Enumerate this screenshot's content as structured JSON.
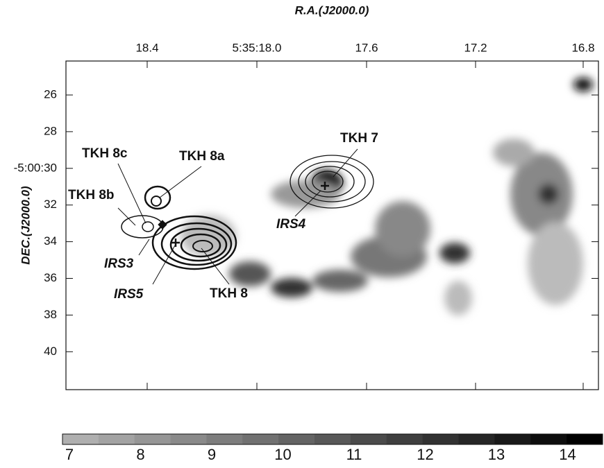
{
  "figure": {
    "x_axis": {
      "label": "R.A.(J2000.0)",
      "ticks": [
        "18.4",
        "5:35:18.0",
        "17.6",
        "17.2",
        "16.8"
      ]
    },
    "y_axis": {
      "label": "DEC.(J2000.0)",
      "ticks": [
        "26",
        "28",
        "-5:00:30",
        "32",
        "34",
        "36",
        "38",
        "40"
      ]
    },
    "annotations": [
      "TKH 8c",
      "TKH 8a",
      "TKH 8b",
      "TKH 7",
      "IRS4",
      "IRS3",
      "IRS5",
      "TKH 8"
    ],
    "colorbar": {
      "ticks": [
        "7",
        "8",
        "9",
        "10",
        "11",
        "12",
        "13",
        "14"
      ]
    }
  }
}
